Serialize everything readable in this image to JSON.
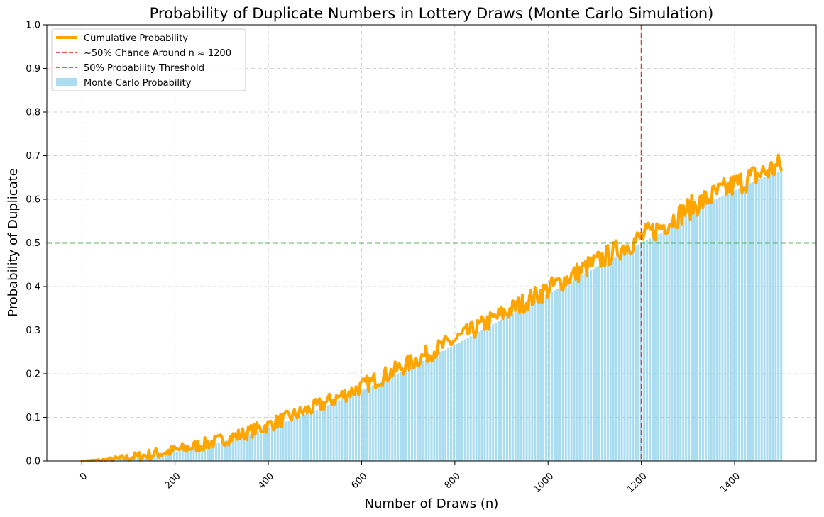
{
  "chart_data": {
    "type": "bar",
    "title": "Probability of Duplicate Numbers in Lottery Draws (Monte Carlo Simulation)",
    "xlabel": "Number of Draws (n)",
    "ylabel": "Probability of Duplicate",
    "xlim": [
      -75,
      1575
    ],
    "ylim": [
      0,
      1
    ],
    "x_ticks": [
      0,
      200,
      400,
      600,
      800,
      1000,
      1200,
      1400
    ],
    "x_tick_labels": [
      "0",
      "200",
      "400",
      "600",
      "800",
      "1000",
      "1200",
      "1400"
    ],
    "y_ticks": [
      0,
      0.1,
      0.2,
      0.3,
      0.4,
      0.5,
      0.6,
      0.7,
      0.8,
      0.9,
      1.0
    ],
    "y_tick_labels": [
      "0.0",
      "0.1",
      "0.2",
      "0.3",
      "0.4",
      "0.5",
      "0.6",
      "0.7",
      "0.8",
      "0.9",
      "1.0"
    ],
    "grid": true,
    "legend_position": "top-left",
    "series": [
      {
        "name": "Monte Carlo Probability",
        "kind": "bar",
        "color": "#87ceeb",
        "x": [
          0,
          50,
          100,
          150,
          200,
          250,
          300,
          350,
          400,
          450,
          500,
          550,
          600,
          650,
          700,
          750,
          800,
          850,
          900,
          950,
          1000,
          1050,
          1100,
          1150,
          1200,
          1250,
          1300,
          1350,
          1400,
          1450,
          1500
        ],
        "values": [
          0.0,
          0.002,
          0.006,
          0.013,
          0.021,
          0.031,
          0.043,
          0.058,
          0.076,
          0.095,
          0.115,
          0.138,
          0.161,
          0.186,
          0.212,
          0.239,
          0.266,
          0.295,
          0.324,
          0.353,
          0.383,
          0.412,
          0.442,
          0.471,
          0.5,
          0.528,
          0.566,
          0.596,
          0.62,
          0.645,
          0.665
        ]
      },
      {
        "name": "Cumulative Probability",
        "kind": "line",
        "color": "#ffa500",
        "x": [
          0,
          50,
          100,
          150,
          200,
          250,
          300,
          350,
          400,
          450,
          500,
          550,
          600,
          650,
          700,
          750,
          800,
          850,
          900,
          950,
          1000,
          1050,
          1100,
          1150,
          1200,
          1250,
          1300,
          1350,
          1400,
          1450,
          1500
        ],
        "values": [
          0.0,
          0.002,
          0.008,
          0.015,
          0.024,
          0.035,
          0.048,
          0.063,
          0.082,
          0.102,
          0.123,
          0.146,
          0.17,
          0.196,
          0.222,
          0.25,
          0.277,
          0.306,
          0.335,
          0.364,
          0.394,
          0.424,
          0.454,
          0.484,
          0.512,
          0.542,
          0.578,
          0.606,
          0.633,
          0.656,
          0.678
        ]
      },
      {
        "name": "~50% Chance Around n ≈ 1200",
        "kind": "vline",
        "color": "#e03c31",
        "x_value": 1200
      },
      {
        "name": "50% Probability Threshold",
        "kind": "hline",
        "color": "#2ca02c",
        "y_value": 0.5
      }
    ]
  }
}
